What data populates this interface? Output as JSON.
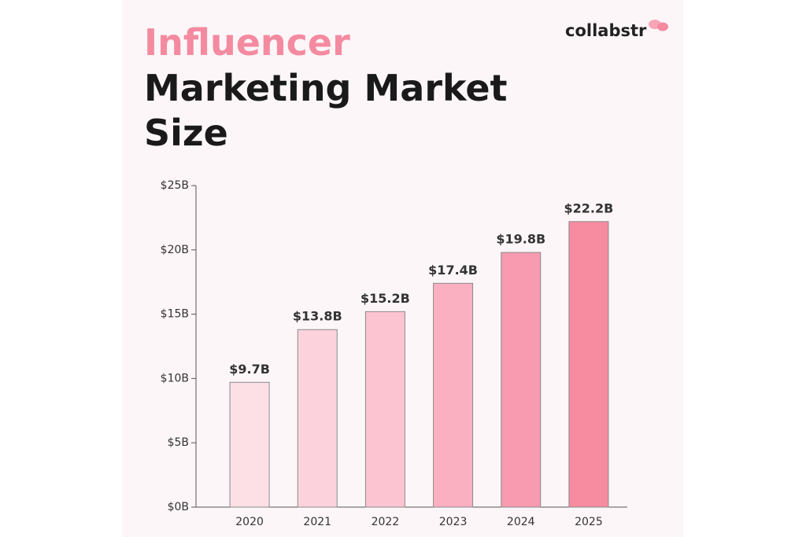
{
  "brand": "collabstr",
  "chart_data": {
    "type": "bar",
    "title_lines": [
      "Influencer",
      "Marketing Market",
      "Size"
    ],
    "categories": [
      "2020",
      "2021",
      "2022",
      "2023",
      "2024",
      "2025"
    ],
    "values": [
      9.7,
      13.8,
      15.2,
      17.4,
      19.8,
      22.2
    ],
    "value_labels": [
      "$9.7B",
      "$13.8B",
      "$15.2B",
      "$17.4B",
      "$19.8B",
      "$22.2B"
    ],
    "colors": [
      "#fde0e6",
      "#fcd3dc",
      "#fcc4d1",
      "#fbb0c1",
      "#f89ab0",
      "#f78ba0"
    ],
    "ylim": [
      0,
      25
    ],
    "yticks": [
      {
        "value": 0,
        "label": "$0B"
      },
      {
        "value": 5,
        "label": "$5B"
      },
      {
        "value": 10,
        "label": "$10B"
      },
      {
        "value": 15,
        "label": "$15B"
      },
      {
        "value": 20,
        "label": "$20B"
      },
      {
        "value": 25,
        "label": "$25B"
      }
    ],
    "grid": false
  }
}
